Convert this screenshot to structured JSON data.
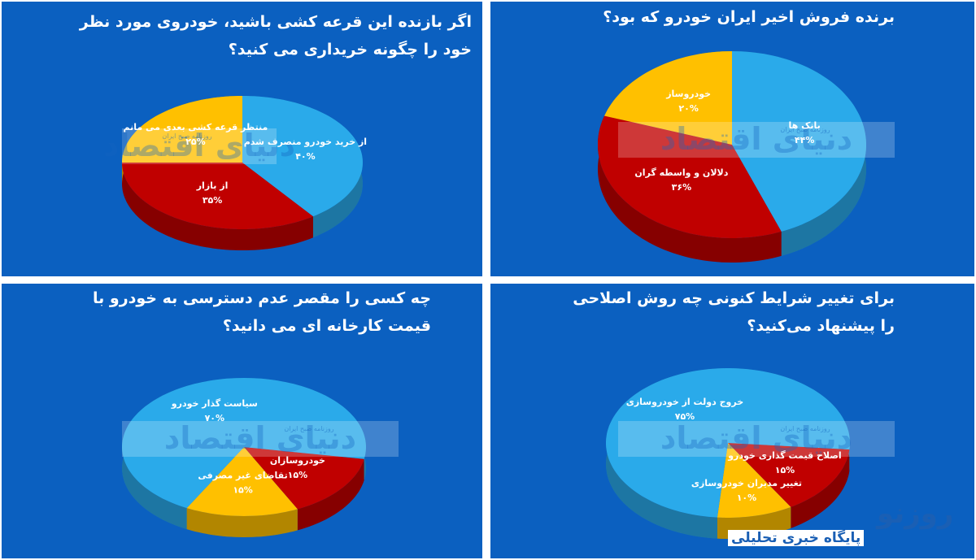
{
  "chart_data": [
    {
      "type": "pie",
      "title": "اگر بازنده این قرعه کشی باشید، خودروی مورد نظر خود را چگونه خریداری می کنید؟",
      "categories": [
        "از خرید خودرو منصرف شدم",
        "از بازار",
        "منتظر قرعه کشی بعدی می مانم"
      ],
      "values": [
        40,
        35,
        25
      ],
      "value_labels": [
        "۴۰%",
        "۳۵%",
        "۲۵%"
      ],
      "colors": [
        "#2aaaea",
        "#c00000",
        "#ffc000"
      ]
    },
    {
      "type": "pie",
      "title": "برنده فروش اخیر ایران خودرو که بود؟",
      "categories": [
        "بانک ها",
        "دلالان و واسطه گران",
        "خودروساز"
      ],
      "values": [
        44,
        36,
        20
      ],
      "value_labels": [
        "۴۴%",
        "۳۶%",
        "۲۰%"
      ],
      "colors": [
        "#2aaaea",
        "#c00000",
        "#ffc000"
      ]
    },
    {
      "type": "pie",
      "title": "چه کسی را مقصر عدم دسترسی به خودرو با قیمت کارخانه ای می دانید؟",
      "categories": [
        "خودروسازان",
        "تقاضای غیر مصرفی",
        "سیاست گذار خودرو"
      ],
      "values": [
        15,
        15,
        70
      ],
      "value_labels": [
        "۱۵%",
        "۱۵%",
        "۷۰%"
      ],
      "colors": [
        "#c00000",
        "#ffc000",
        "#2aaaea"
      ]
    },
    {
      "type": "pie",
      "title": "برای تغییر شرایط کنونی چه روش اصلاحی را پیشنهاد می‌کنید؟",
      "categories": [
        "اصلاح قیمت گذاری خودرو",
        "تغییر مدیران خودروسازی",
        "خروج دولت از خودروسازی"
      ],
      "values": [
        15,
        10,
        75
      ],
      "value_labels": [
        "۱۵%",
        "۱۰%",
        "۷۵%"
      ],
      "colors": [
        "#c00000",
        "#ffc000",
        "#2aaaea"
      ]
    }
  ],
  "watermark": {
    "text": "دنیای اقتصاد",
    "sub": "روزنامه صبح ایران"
  },
  "branding": {
    "logo": "روزنو",
    "tagline": "پایگاه خبری تحلیلی"
  }
}
